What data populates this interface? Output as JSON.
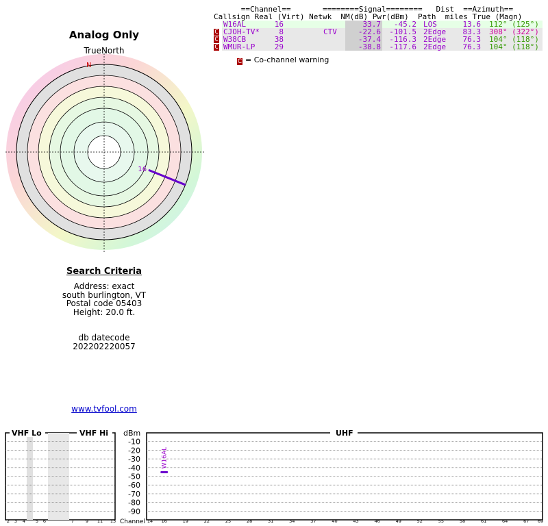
{
  "title": "Analog Only",
  "compass_label": "TrueNorth",
  "north_letter": "N",
  "criteria": {
    "heading": "Search Criteria",
    "lines": [
      "Address: exact",
      "south burlington, VT",
      "Postal code 05403",
      "Height: 20.0 ft."
    ]
  },
  "db": {
    "label": "db datecode",
    "value": "202202220057"
  },
  "site_link": "www.tvfool.com",
  "table": {
    "header1": "      ==Channel==       ========Signal========   Dist  ==Azimuth==",
    "header2": "Callsign Real (Virt) Netwk  NM(dB) Pwr(dBm)  Path  miles True (Magn)",
    "rows": [
      {
        "callsign": "W16AL",
        "real": "16",
        "virt": "",
        "netwk": "",
        "nm": "33.7",
        "pwr": "-45.2",
        "path": "LOS",
        "dist": "13.6",
        "az": "112° (125°)",
        "warn": false,
        "color": "#9900cc",
        "az_color": "#339900",
        "bg": "#e6ffe6"
      },
      {
        "callsign": "CJOH-TV*",
        "real": "8",
        "virt": "",
        "netwk": "CTV",
        "nm": "-22.6",
        "pwr": "-101.5",
        "path": "2Edge",
        "dist": "83.3",
        "az": "308° (322°)",
        "warn": true,
        "color": "#9900cc",
        "az_color": "#cc0099",
        "bg": "#e8e8e8"
      },
      {
        "callsign": "W38CB",
        "real": "38",
        "virt": "",
        "netwk": "",
        "nm": "-37.4",
        "pwr": "-116.3",
        "path": "2Edge",
        "dist": "76.3",
        "az": "104° (118°)",
        "warn": true,
        "color": "#9900cc",
        "az_color": "#339900",
        "bg": "#e8e8e8"
      },
      {
        "callsign": "WMUR-LP",
        "real": "29",
        "virt": "",
        "netwk": "",
        "nm": "-38.8",
        "pwr": "-117.6",
        "path": "2Edge",
        "dist": "76.3",
        "az": "104° (118°)",
        "warn": true,
        "color": "#9900cc",
        "az_color": "#339900",
        "bg": "#e8e8e8"
      }
    ],
    "warn_glyph": "C",
    "legend_text": "= Co-channel warning"
  },
  "polar_station": {
    "label": "16",
    "azimuth_deg": 112
  },
  "spectrum": {
    "vhf_lo_label": "VHF Lo",
    "vhf_hi_label": "VHF Hi",
    "uhf_label": "UHF",
    "dbm_label": "dBm",
    "dbm_ticks": [
      "-10",
      "-20",
      "-30",
      "-40",
      "-50",
      "-60",
      "-70",
      "-80",
      "-90"
    ],
    "channel_label": "Channel",
    "vhf_lo_ticks": [
      "2",
      "3",
      "4",
      "5",
      "6"
    ],
    "vhf_hi_ticks": [
      "7",
      "9",
      "11",
      "13"
    ],
    "uhf_ticks": [
      "14",
      "16",
      "19",
      "22",
      "25",
      "28",
      "31",
      "34",
      "37",
      "40",
      "43",
      "46",
      "49",
      "52",
      "55",
      "58",
      "61",
      "64",
      "67",
      "69"
    ],
    "station": {
      "label": "W16AL",
      "channel": 16,
      "pwr_dbm": -45.2
    }
  }
}
